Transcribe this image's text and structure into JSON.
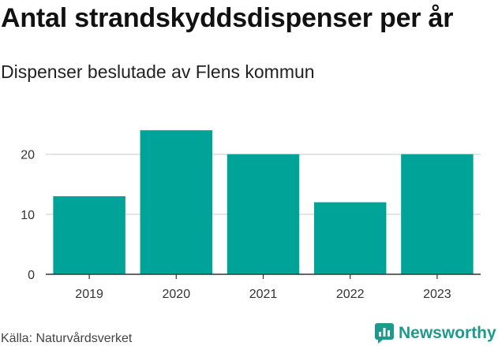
{
  "title": "Antal strandskyddsdispenser per år",
  "subtitle": "Dispenser beslutade av Flens kommun",
  "source": "Källa: Naturvårdsverket",
  "brand": {
    "name": "Newsworthy",
    "icon": "newsworthy-logo-icon",
    "color": "#1e9a8c"
  },
  "chart_data": {
    "type": "bar",
    "title": "Antal strandskyddsdispenser per år",
    "subtitle": "Dispenser beslutade av Flens kommun",
    "xlabel": "",
    "ylabel": "",
    "categories": [
      "2019",
      "2020",
      "2021",
      "2022",
      "2023"
    ],
    "values": [
      13,
      24,
      20,
      12,
      20
    ],
    "ylim": [
      0,
      26
    ],
    "yticks": [
      0,
      10,
      20
    ],
    "ytick_labels": [
      "0",
      "10",
      "20"
    ],
    "grid": true,
    "bar_color": "#00a398"
  }
}
